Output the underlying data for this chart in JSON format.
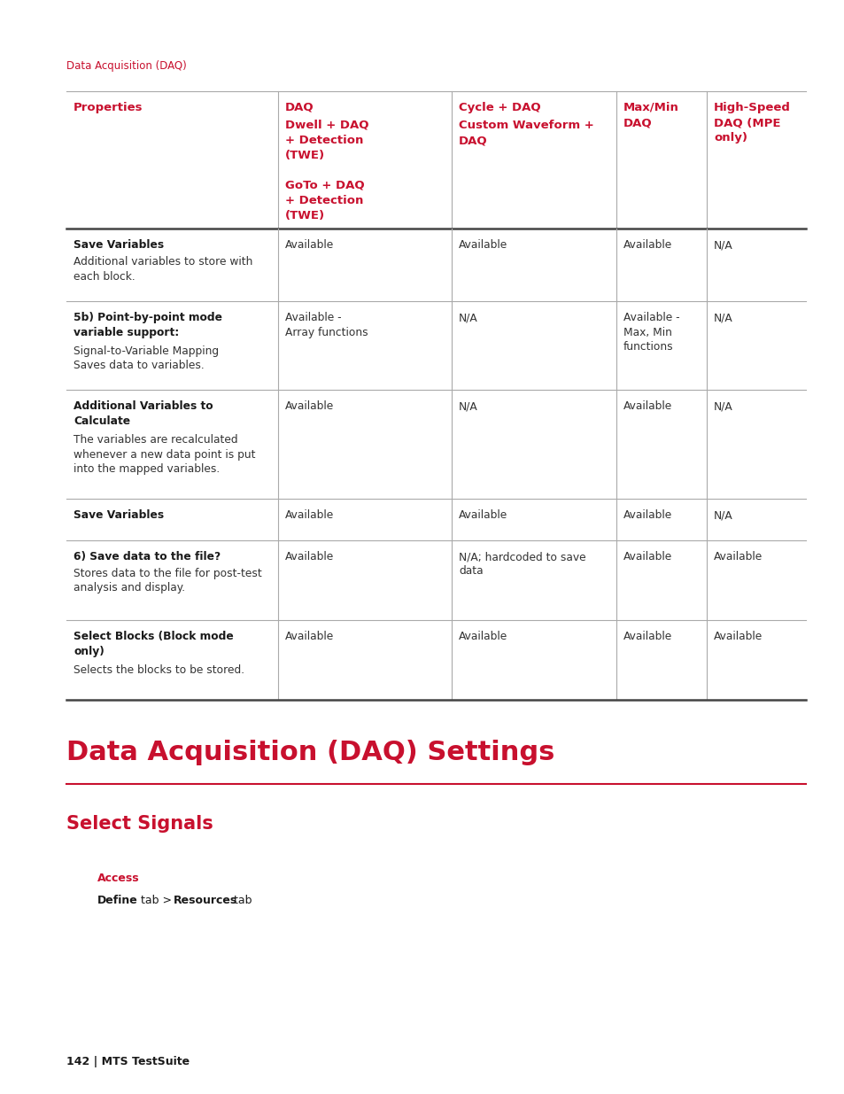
{
  "page_header": "Data Acquisition (DAQ)",
  "header_color": "#C8102E",
  "bg_color": "#FFFFFF",
  "page_footer": "142 | MTS TestSuite",
  "section_title": "Data Acquisition (DAQ) Settings",
  "subsection_title": "Select Signals",
  "access_label": "Access",
  "table": {
    "rows": [
      {
        "col0_bold": "Save Variables",
        "col0_normal": "Additional variables to store with\neach block.",
        "col1": "Available",
        "col2": "Available",
        "col3": "Available",
        "col4": "N/A"
      },
      {
        "col0_bold": "5b) Point-by-point mode\nvariable support:",
        "col0_normal": "Signal-to-Variable Mapping\nSaves data to variables.",
        "col1": "Available -\nArray functions",
        "col2": "N/A",
        "col3": "Available -\nMax, Min\nfunctions",
        "col4": "N/A"
      },
      {
        "col0_bold": "Additional Variables to\nCalculate",
        "col0_normal": "The variables are recalculated\nwhenever a new data point is put\ninto the mapped variables.",
        "col1": "Available",
        "col2": "N/A",
        "col3": "Available",
        "col4": "N/A"
      },
      {
        "col0_bold": "Save Variables",
        "col0_normal": "",
        "col1": "Available",
        "col2": "Available",
        "col3": "Available",
        "col4": "N/A"
      },
      {
        "col0_bold": "6) Save data to the file?",
        "col0_normal": "Stores data to the file for post-test\nanalysis and display.",
        "col1": "Available",
        "col2": "N/A; hardcoded to save\ndata",
        "col3": "Available",
        "col4": "Available"
      },
      {
        "col0_bold": "Select Blocks (Block mode\nonly)",
        "col0_normal": "Selects the blocks to be stored.",
        "col1": "Available",
        "col2": "Available",
        "col3": "Available",
        "col4": "Available"
      }
    ]
  }
}
